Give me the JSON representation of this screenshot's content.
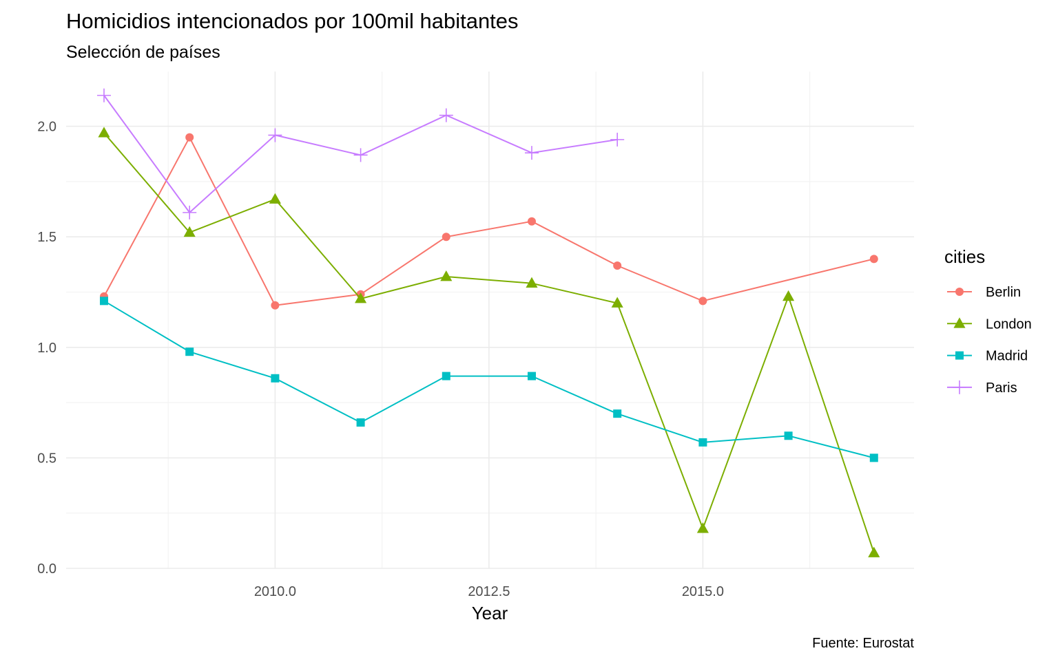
{
  "chart_data": {
    "type": "line",
    "title": "Homicidios intencionados por 100mil habitantes",
    "subtitle": "Selección de países",
    "xlabel": "Year",
    "ylabel": "",
    "caption": "Fuente: Eurostat",
    "legend_title": "cities",
    "legend_position": "right",
    "grid": true,
    "xlim": [
      2008,
      2017
    ],
    "ylim": [
      0,
      2.2
    ],
    "x_ticks": [
      2010,
      2012.5,
      2015
    ],
    "x_tick_labels": [
      "2010.0",
      "2012.5",
      "2015.0"
    ],
    "y_ticks": [
      0,
      0.5,
      1,
      1.5,
      2
    ],
    "y_tick_labels": [
      "0.0",
      "0.5",
      "1.0",
      "1.5",
      "2.0"
    ],
    "series": [
      {
        "name": "Berlin",
        "color": "#F8766D",
        "marker": "circle",
        "points": [
          [
            2008,
            1.23
          ],
          [
            2009,
            1.95
          ],
          [
            2010,
            1.19
          ],
          [
            2011,
            1.24
          ],
          [
            2012,
            1.5
          ],
          [
            2013,
            1.57
          ],
          [
            2014,
            1.37
          ],
          [
            2015,
            1.21
          ],
          [
            2017,
            1.4
          ]
        ]
      },
      {
        "name": "London",
        "color": "#7CAE00",
        "marker": "triangle",
        "points": [
          [
            2008,
            1.97
          ],
          [
            2009,
            1.52
          ],
          [
            2010,
            1.67
          ],
          [
            2011,
            1.22
          ],
          [
            2012,
            1.32
          ],
          [
            2013,
            1.29
          ],
          [
            2014,
            1.2
          ],
          [
            2015,
            0.18
          ],
          [
            2016,
            1.23
          ],
          [
            2017,
            0.07
          ]
        ]
      },
      {
        "name": "Madrid",
        "color": "#00BFC4",
        "marker": "square",
        "points": [
          [
            2008,
            1.21
          ],
          [
            2009,
            0.98
          ],
          [
            2010,
            0.86
          ],
          [
            2011,
            0.66
          ],
          [
            2012,
            0.87
          ],
          [
            2013,
            0.87
          ],
          [
            2014,
            0.7
          ],
          [
            2015,
            0.57
          ],
          [
            2016,
            0.6
          ],
          [
            2017,
            0.5
          ]
        ]
      },
      {
        "name": "Paris",
        "color": "#C77CFF",
        "marker": "plus",
        "points": [
          [
            2008,
            2.14
          ],
          [
            2009,
            1.61
          ],
          [
            2010,
            1.96
          ],
          [
            2011,
            1.87
          ],
          [
            2012,
            2.05
          ],
          [
            2013,
            1.88
          ],
          [
            2014,
            1.94
          ]
        ]
      }
    ]
  }
}
